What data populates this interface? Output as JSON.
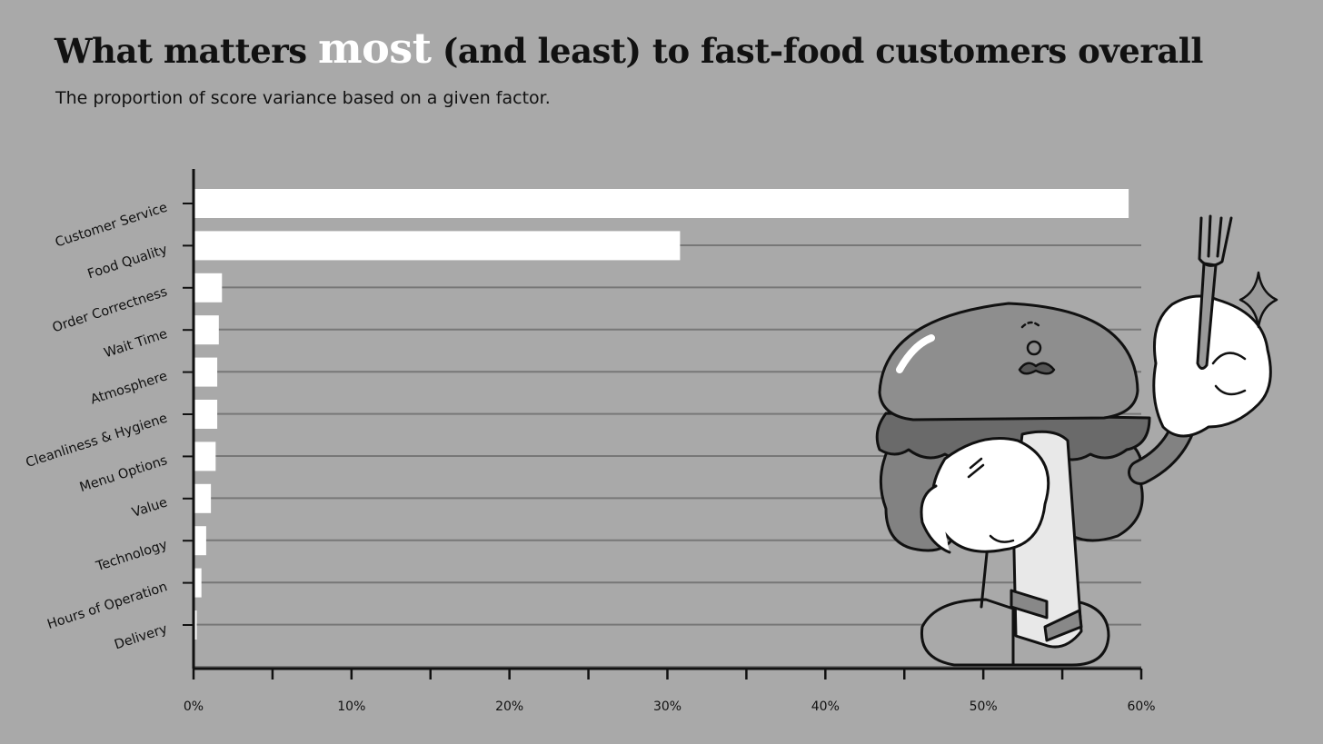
{
  "title": {
    "before": "What matters ",
    "highlight": "most",
    "after": " (and least) to fast-food customers overall"
  },
  "subtitle": "The proportion of score variance based on a given factor.",
  "colors": {
    "background": "#a9a9a9",
    "bar": "#ffffff",
    "axis": "#111111",
    "grid": "#777777"
  },
  "chart_data": {
    "type": "bar",
    "orientation": "horizontal",
    "categories": [
      "Customer Service",
      "Food Quality",
      "Order Correctness",
      "Wait Time",
      "Atmosphere",
      "Cleanliness & Hygiene",
      "Menu Options",
      "Value",
      "Technology",
      "Hours of Operation",
      "Delivery"
    ],
    "values": [
      59.2,
      30.8,
      1.8,
      1.6,
      1.5,
      1.5,
      1.4,
      1.1,
      0.8,
      0.5,
      0.2
    ],
    "xlim": [
      0,
      60
    ],
    "x_ticks": [
      0,
      10,
      20,
      30,
      40,
      50,
      60
    ],
    "x_tick_labels": [
      "0%",
      "10%",
      "20%",
      "30%",
      "40%",
      "50%",
      "60%"
    ],
    "x_minor_ticks": [
      5,
      15,
      25,
      35,
      45,
      55
    ],
    "grid": "horizontal",
    "title": "",
    "xlabel": "",
    "ylabel": ""
  }
}
